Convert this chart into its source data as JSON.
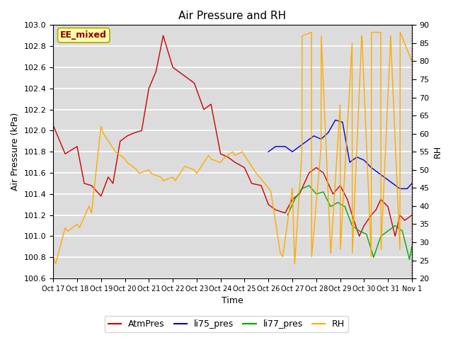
{
  "title": "Air Pressure and RH",
  "xlabel": "Time",
  "ylabel_left": "Air Pressure (kPa)",
  "ylabel_right": "RH",
  "annotation": "EE_mixed",
  "ylim_left": [
    100.6,
    103.0
  ],
  "ylim_right": [
    20,
    90
  ],
  "yticks_left": [
    100.6,
    100.8,
    101.0,
    101.2,
    101.4,
    101.6,
    101.8,
    102.0,
    102.2,
    102.4,
    102.6,
    102.8,
    103.0
  ],
  "yticks_right": [
    20,
    25,
    30,
    35,
    40,
    45,
    50,
    55,
    60,
    65,
    70,
    75,
    80,
    85,
    90
  ],
  "xtick_labels": [
    "Oct 17",
    "Oct 18",
    "Oct 19",
    "Oct 20",
    "Oct 21",
    "Oct 22",
    "Oct 23",
    "Oct 24",
    "Oct 25",
    "Oct 26",
    "Oct 27",
    "Oct 28",
    "Oct 29",
    "Oct 30",
    "Oct 31",
    "Nov 1"
  ],
  "colors": {
    "AtmPres": "#cc0000",
    "li75_pres": "#0000cc",
    "li77_pres": "#00aa00",
    "RH": "#ffaa00",
    "background": "#dcdcdc",
    "grid": "#ffffff",
    "annotation_bg": "#ffffaa",
    "annotation_border": "#aaaa00",
    "annotation_text": "#880000"
  },
  "AtmPres_x": [
    0,
    0.5,
    1.0,
    1.3,
    1.6,
    2.0,
    2.3,
    2.5,
    2.8,
    3.1,
    3.4,
    3.7,
    4.0,
    4.3,
    4.6,
    5.0,
    5.3,
    5.6,
    5.9,
    6.3,
    6.6,
    7.0,
    7.3,
    7.6,
    8.0,
    8.3,
    8.7,
    9.0,
    9.3,
    9.7,
    10.0,
    10.3,
    10.7,
    11.0,
    11.3,
    11.7,
    12.0,
    12.3,
    12.5,
    12.8,
    13.0,
    13.3,
    13.5,
    13.7,
    14.0,
    14.3,
    14.5,
    14.7,
    15.0
  ],
  "AtmPres_y": [
    102.05,
    101.78,
    101.85,
    101.5,
    101.48,
    101.38,
    101.56,
    101.5,
    101.9,
    101.95,
    101.98,
    102.0,
    102.4,
    102.56,
    102.9,
    102.6,
    102.55,
    102.5,
    102.45,
    102.2,
    102.25,
    101.78,
    101.75,
    101.7,
    101.65,
    101.5,
    101.48,
    101.3,
    101.25,
    101.22,
    101.35,
    101.4,
    101.6,
    101.65,
    101.6,
    101.4,
    101.48,
    101.35,
    101.2,
    101.0,
    101.1,
    101.2,
    101.25,
    101.35,
    101.28,
    101.0,
    101.2,
    101.15,
    101.2
  ],
  "li75_x": [
    9.0,
    9.3,
    9.7,
    10.0,
    10.3,
    10.6,
    10.9,
    11.2,
    11.5,
    11.8,
    12.1,
    12.4,
    12.7,
    13.0,
    13.3,
    13.6,
    13.9,
    14.2,
    14.5,
    14.8,
    15.0
  ],
  "li75_y": [
    101.8,
    101.85,
    101.85,
    101.8,
    101.85,
    101.9,
    101.95,
    101.92,
    101.98,
    102.1,
    102.08,
    101.7,
    101.75,
    101.72,
    101.65,
    101.6,
    101.55,
    101.5,
    101.45,
    101.45,
    101.5
  ],
  "li77_x": [
    9.8,
    10.1,
    10.4,
    10.7,
    11.0,
    11.3,
    11.6,
    11.9,
    12.2,
    12.5,
    12.8,
    13.1,
    13.4,
    13.7,
    14.0,
    14.3,
    14.6,
    14.9,
    15.0
  ],
  "li77_y": [
    101.2,
    101.35,
    101.45,
    101.48,
    101.4,
    101.42,
    101.28,
    101.32,
    101.28,
    101.1,
    101.05,
    101.02,
    100.8,
    101.0,
    101.05,
    101.1,
    101.05,
    100.78,
    100.9
  ],
  "RH_x": [
    0,
    0.1,
    0.5,
    0.6,
    1.0,
    1.1,
    1.5,
    1.6,
    2.0,
    2.1,
    2.5,
    2.6,
    3.0,
    3.1,
    3.5,
    3.6,
    4.0,
    4.1,
    4.5,
    4.6,
    5.0,
    5.1,
    5.4,
    5.5,
    5.9,
    6.0,
    6.5,
    6.6,
    7.0,
    7.1,
    7.5,
    7.6,
    7.9,
    8.0,
    8.4,
    8.5,
    9.0,
    9.1,
    9.5,
    9.6,
    10.0,
    10.1,
    10.4,
    10.41,
    10.8,
    10.81,
    11.2,
    11.21,
    11.6,
    11.61,
    12.0,
    12.01,
    12.5,
    12.51,
    12.9,
    12.91,
    13.3,
    13.31,
    13.7,
    13.71,
    14.1,
    14.11,
    14.5,
    14.51,
    15.0
  ],
  "RH_y": [
    26,
    24,
    34,
    33,
    35,
    34,
    40,
    38,
    62,
    60,
    56,
    55,
    53,
    52,
    50,
    49,
    50,
    49,
    48,
    47,
    48,
    47,
    50,
    51,
    50,
    49,
    54,
    53,
    52,
    53,
    55,
    54,
    55,
    54,
    50,
    49,
    45,
    44,
    27,
    26,
    45,
    24,
    55,
    87,
    88,
    26,
    56,
    87,
    28,
    27,
    68,
    28,
    85,
    27,
    87,
    87,
    26,
    88,
    88,
    28,
    85,
    87,
    28,
    88,
    80
  ]
}
